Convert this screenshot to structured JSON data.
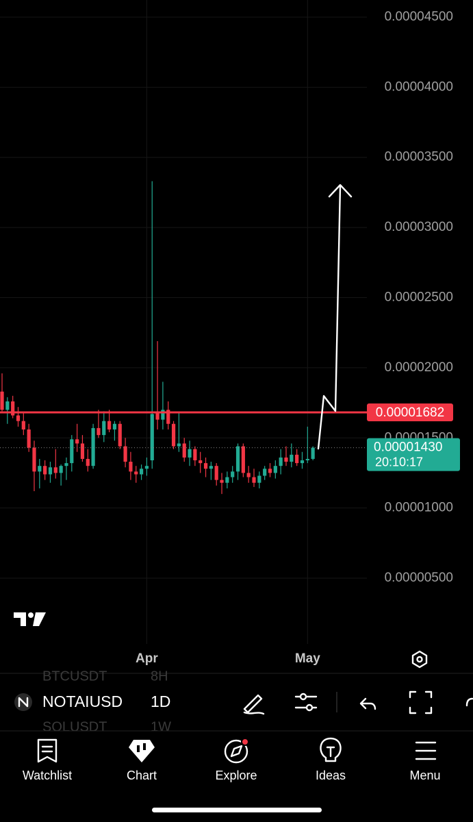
{
  "chart_data": {
    "type": "candlestick",
    "x": [
      null,
      null,
      null,
      null,
      null,
      null,
      null,
      null,
      null,
      null,
      null,
      null,
      null,
      null,
      null,
      null,
      null,
      null,
      null,
      null,
      null,
      null,
      null,
      null,
      null,
      null,
      null,
      "Apr",
      null,
      null,
      null,
      null,
      null,
      null,
      null,
      null,
      null,
      null,
      null,
      null,
      null,
      null,
      null,
      null,
      null,
      null,
      null,
      null,
      null,
      null,
      null,
      null,
      null,
      null,
      null,
      null,
      null,
      "May",
      null
    ],
    "open": [
      1.83e-05,
      1.7e-05,
      1.76e-05,
      1.66e-05,
      1.62e-05,
      1.56e-05,
      1.43e-05,
      1.26e-05,
      1.3e-05,
      1.24e-05,
      1.29e-05,
      1.25e-05,
      1.3e-05,
      1.32e-05,
      1.49e-05,
      1.46e-05,
      1.35e-05,
      1.3e-05,
      1.57e-05,
      1.52e-05,
      1.62e-05,
      1.56e-05,
      1.6e-05,
      1.44e-05,
      1.33e-05,
      1.26e-05,
      1.24e-05,
      1.28e-05,
      1.34e-05,
      1.68e-05,
      1.63e-05,
      1.7e-05,
      1.6e-05,
      1.44e-05,
      1.46e-05,
      1.36e-05,
      1.42e-05,
      1.34e-05,
      1.32e-05,
      1.28e-05,
      1.3e-05,
      1.2e-05,
      1.18e-05,
      1.22e-05,
      1.26e-05,
      1.44e-05,
      1.25e-05,
      1.22e-05,
      1.18e-05,
      1.23e-05,
      1.28e-05,
      1.25e-05,
      1.3e-05,
      1.36e-05,
      1.33e-05,
      1.38e-05,
      1.32e-05,
      1.34e-05,
      1.35e-05
    ],
    "high": [
      1.96e-05,
      1.79e-05,
      1.8e-05,
      1.72e-05,
      1.68e-05,
      1.6e-05,
      1.48e-05,
      1.35e-05,
      1.34e-05,
      1.33e-05,
      1.42e-05,
      1.31e-05,
      1.36e-05,
      1.52e-05,
      1.6e-05,
      1.52e-05,
      1.42e-05,
      1.6e-05,
      1.7e-05,
      1.69e-05,
      1.7e-05,
      1.62e-05,
      1.62e-05,
      1.5e-05,
      1.4e-05,
      1.3e-05,
      1.31e-05,
      1.36e-05,
      3.33e-05,
      2.19e-05,
      1.9e-05,
      1.76e-05,
      1.62e-05,
      1.68e-05,
      1.5e-05,
      1.48e-05,
      1.44e-05,
      1.4e-05,
      1.36e-05,
      1.33e-05,
      1.32e-05,
      1.25e-05,
      1.26e-05,
      1.3e-05,
      1.46e-05,
      1.46e-05,
      1.3e-05,
      1.28e-05,
      1.26e-05,
      1.3e-05,
      1.32e-05,
      1.34e-05,
      1.42e-05,
      1.44e-05,
      1.46e-05,
      1.42e-05,
      1.4e-05,
      1.58e-05,
      1.44e-05
    ],
    "low": [
      1.69e-05,
      1.6e-05,
      1.64e-05,
      1.58e-05,
      1.52e-05,
      1.4e-05,
      1.12e-05,
      1.14e-05,
      1.2e-05,
      1.18e-05,
      1.21e-05,
      1.16e-05,
      1.2e-05,
      1.26e-05,
      1.4e-05,
      1.33e-05,
      1.26e-05,
      1.28e-05,
      1.5e-05,
      1.47e-05,
      1.54e-05,
      1.48e-05,
      1.42e-05,
      1.29e-05,
      1.2e-05,
      1.18e-05,
      1.2e-05,
      1.23e-05,
      1.28e-05,
      1.56e-05,
      1.56e-05,
      1.56e-05,
      1.42e-05,
      1.4e-05,
      1.33e-05,
      1.3e-05,
      1.3e-05,
      1.25e-05,
      1.22e-05,
      1.2e-05,
      1.16e-05,
      1.1e-05,
      1.14e-05,
      1.18e-05,
      1.2e-05,
      1.22e-05,
      1.18e-05,
      1.15e-05,
      1.14e-05,
      1.2e-05,
      1.22e-05,
      1.21e-05,
      1.24e-05,
      1.3e-05,
      1.29e-05,
      1.3e-05,
      1.28e-05,
      1.32e-05,
      1.34e-05
    ],
    "close": [
      1.7e-05,
      1.76e-05,
      1.66e-05,
      1.62e-05,
      1.56e-05,
      1.43e-05,
      1.26e-05,
      1.3e-05,
      1.24e-05,
      1.29e-05,
      1.25e-05,
      1.3e-05,
      1.32e-05,
      1.49e-05,
      1.46e-05,
      1.35e-05,
      1.3e-05,
      1.57e-05,
      1.52e-05,
      1.62e-05,
      1.56e-05,
      1.6e-05,
      1.44e-05,
      1.33e-05,
      1.26e-05,
      1.24e-05,
      1.28e-05,
      1.3e-05,
      1.67e-05,
      1.63e-05,
      1.7e-05,
      1.6e-05,
      1.44e-05,
      1.46e-05,
      1.36e-05,
      1.42e-05,
      1.34e-05,
      1.32e-05,
      1.28e-05,
      1.3e-05,
      1.2e-05,
      1.18e-05,
      1.22e-05,
      1.26e-05,
      1.44e-05,
      1.25e-05,
      1.22e-05,
      1.18e-05,
      1.23e-05,
      1.28e-05,
      1.25e-05,
      1.3e-05,
      1.36e-05,
      1.33e-05,
      1.38e-05,
      1.32e-05,
      1.34e-05,
      1.35e-05,
      1.43e-05
    ],
    "up_color": "#22ab94",
    "down_color": "#f23645",
    "ylim": [
      3.11e-07,
      4.622e-05
    ],
    "yticks": [
      {
        "value": 4.5e-05,
        "label": "0.00004500"
      },
      {
        "value": 4e-05,
        "label": "0.00004000"
      },
      {
        "value": 3.5e-05,
        "label": "0.00003500"
      },
      {
        "value": 3e-05,
        "label": "0.00003000"
      },
      {
        "value": 2.5e-05,
        "label": "0.00002500"
      },
      {
        "value": 2e-05,
        "label": "0.00002000"
      },
      {
        "value": 1.5e-05,
        "label": "0.00001500"
      },
      {
        "value": 1e-05,
        "label": "0.00001000"
      },
      {
        "value": 5e-06,
        "label": "0.00000500"
      }
    ],
    "grid": true,
    "horizontal_line": {
      "value": 1.682e-05,
      "label": "0.00001682",
      "color": "#f23645"
    },
    "last_price": {
      "value": 1.43e-05,
      "label": "0.00001430",
      "countdown": "20:10:17",
      "color": "#22ab94"
    }
  },
  "toolbar": {
    "symbol": "NOTAIUSD",
    "interval": "1D",
    "ghost_above": [
      "BTCUSDT",
      "8H"
    ],
    "ghost_below": [
      "SOLUSDT",
      "1W"
    ]
  },
  "nav": [
    "Watchlist",
    "Chart",
    "Explore",
    "Ideas",
    "Menu"
  ]
}
